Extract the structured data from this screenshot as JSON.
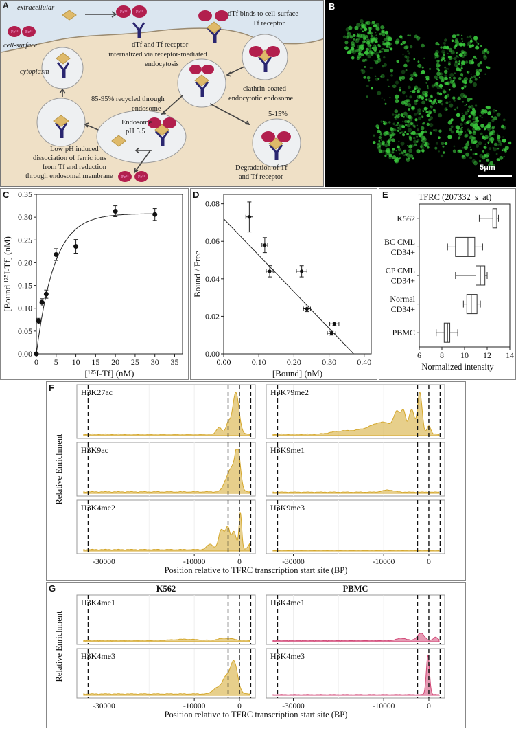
{
  "colors": {
    "gold": "#d4a72c",
    "gold_line": "#b8860b",
    "pink": "#d24877",
    "green": "#39c43c",
    "cell_bg": "#efe0c6",
    "extra_bg": "#dbe6f0",
    "receptor": "#2a2670",
    "iron": "#b21f4e"
  },
  "panelA": {
    "label": "A",
    "extracellular": "extracellular",
    "cell_surface": "cell-surface",
    "cytoplasm": "cytoplasm",
    "fe": "Fe³⁺",
    "binds_line1": "dTf binds to cell-surface",
    "binds_line2": "Tf receptor",
    "intern_line1": "dTf and Tf receptor",
    "intern_line2": "internalized via receptor-mediated",
    "intern_line3": "endocytosis",
    "clathrin_line1": "clathrin-coated",
    "clathrin_line2": "endocytotic endosome",
    "recycled_line1": "85-95% recycled through",
    "recycled_line2": "endosome",
    "endosome_line1": "Endosome",
    "endosome_line2": "pH 5.5",
    "pct": "5-15%",
    "lowph_line1": "Low pH induced",
    "lowph_line2": "dissociation of ferric ions",
    "lowph_line3": "from Tf and reduction",
    "lowph_line4": "through endosomal membrane",
    "degr_line1": "Degradation of Tf",
    "degr_line2": "and Tf receptor"
  },
  "panelB": {
    "label": "B",
    "scale": "5μm"
  },
  "chart_data": [
    {
      "panel": "C",
      "type": "scatter",
      "ylabel": "[Bound ¹²⁵I-Tf] (nM)",
      "xlabel": "[¹²⁵I-Tf] (nM)",
      "xlim": [
        0,
        37
      ],
      "ylim": [
        0,
        0.35
      ],
      "xticks": [
        "0",
        "5",
        "10",
        "15",
        "20",
        "25",
        "30",
        "35"
      ],
      "yticks": [
        "0.00",
        "0.05",
        "0.10",
        "0.15",
        "0.20",
        "0.25",
        "0.30",
        "0.35"
      ],
      "points": [
        {
          "x": 0,
          "y": 0,
          "e": 0
        },
        {
          "x": 0.6,
          "y": 0.072,
          "e": 0.006
        },
        {
          "x": 1.4,
          "y": 0.113,
          "e": 0.008
        },
        {
          "x": 2.5,
          "y": 0.131,
          "e": 0.009
        },
        {
          "x": 5,
          "y": 0.218,
          "e": 0.013
        },
        {
          "x": 10,
          "y": 0.236,
          "e": 0.015
        },
        {
          "x": 20,
          "y": 0.313,
          "e": 0.012
        },
        {
          "x": 30,
          "y": 0.306,
          "e": 0.013
        }
      ],
      "fit": {
        "bmax": 0.308,
        "k": 0.22
      }
    },
    {
      "panel": "D",
      "type": "scatter",
      "ylabel": "Bound / Free",
      "xlabel": "[Bound] (nM)",
      "xlim": [
        0,
        0.42
      ],
      "ylim": [
        0,
        0.085
      ],
      "xticks": [
        "0.00",
        "0.10",
        "0.20",
        "0.30",
        "0.40"
      ],
      "yticks": [
        "0.00",
        "0.02",
        "0.04",
        "0.06",
        "0.08"
      ],
      "points": [
        {
          "x": 0.073,
          "y": 0.073,
          "xe": 0.01,
          "ye": 0.008
        },
        {
          "x": 0.117,
          "y": 0.058,
          "xe": 0.008,
          "ye": 0.004
        },
        {
          "x": 0.131,
          "y": 0.044,
          "xe": 0.01,
          "ye": 0.003
        },
        {
          "x": 0.222,
          "y": 0.044,
          "xe": 0.015,
          "ye": 0.003
        },
        {
          "x": 0.237,
          "y": 0.024,
          "xe": 0.01,
          "ye": 0.0015
        },
        {
          "x": 0.315,
          "y": 0.016,
          "xe": 0.013,
          "ye": 0.001
        },
        {
          "x": 0.307,
          "y": 0.011,
          "xe": 0.012,
          "ye": 0.001
        }
      ],
      "fit": {
        "x0": 0,
        "y0": 0.072,
        "x1": 0.37,
        "y1": 0
      }
    },
    {
      "panel": "E",
      "type": "boxplot",
      "title": "TFRC (207332_s_at)",
      "xlabel": "Normalized intensity",
      "xlim": [
        6,
        14
      ],
      "xticks": [
        "6",
        "8",
        "10",
        "12",
        "14"
      ],
      "categories": [
        "K562",
        "BC CML\nCD34+",
        "CP CML\nCD34+",
        "Normal\nCD34+",
        "PBMC"
      ],
      "boxes": [
        {
          "min": 11.3,
          "q1": 12.5,
          "med": 12.7,
          "q3": 12.85,
          "max": 13
        },
        {
          "min": 8.5,
          "q1": 9.2,
          "med": 10.3,
          "q3": 10.9,
          "max": 11.6
        },
        {
          "min": 9.2,
          "q1": 11,
          "med": 11.4,
          "q3": 11.8,
          "max": 12
        },
        {
          "min": 9.9,
          "q1": 10.2,
          "med": 10.6,
          "q3": 11.1,
          "max": 11.4
        },
        {
          "min": 7.5,
          "q1": 8.2,
          "med": 8.5,
          "q3": 8.7,
          "max": 9.4
        }
      ]
    },
    {
      "panel": "F",
      "type": "area",
      "ylabel": "Relative Enrichment",
      "xlabel": "Position relative to TFRC transcription start site (BP)",
      "xlim": [
        -36000,
        3500
      ],
      "xticks": [
        "-30000",
        "-10000",
        "0"
      ],
      "xtick_vals": [
        -30000,
        -10000,
        0
      ],
      "vlines": [
        -33500,
        -2500,
        0,
        2500
      ],
      "tracks": [
        {
          "name": "H3K27ac",
          "color": "gold"
        },
        {
          "name": "H3K79me2",
          "color": "gold"
        },
        {
          "name": "H3K9ac",
          "color": "gold"
        },
        {
          "name": "H3K9me1",
          "color": "gold"
        },
        {
          "name": "H3K4me2",
          "color": "gold"
        },
        {
          "name": "H3K9me3",
          "color": "gold"
        }
      ]
    },
    {
      "panel": "G",
      "type": "area",
      "ylabel": "Relative Enrichment",
      "xlabel": "Position relative to TFRC transcription start site (BP)",
      "xlim": [
        -36000,
        3500
      ],
      "xticks": [
        "-30000",
        "-10000",
        "0"
      ],
      "xtick_vals": [
        -30000,
        -10000,
        0
      ],
      "vlines": [
        -33500,
        -2500,
        0,
        2500
      ],
      "columns": [
        "K562",
        "PBMC"
      ],
      "tracks": [
        {
          "name": "H3K4me1",
          "color": "gold"
        },
        {
          "name": "H3K4me1",
          "color": "pink"
        },
        {
          "name": "H3K4me3",
          "color": "gold"
        },
        {
          "name": "H3K4me3",
          "color": "pink"
        }
      ]
    }
  ]
}
